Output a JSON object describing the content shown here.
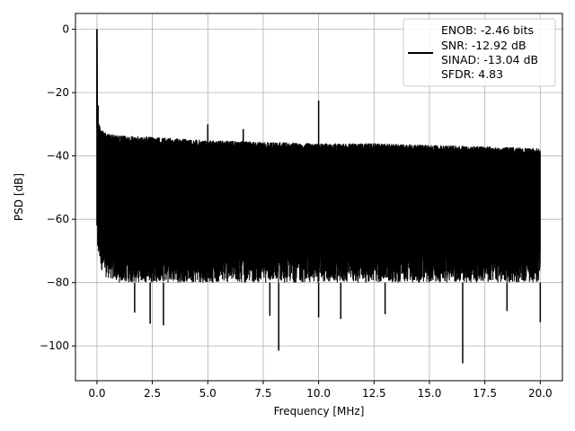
{
  "chart_data": {
    "type": "line",
    "title": "",
    "xlabel": "Frequency [MHz]",
    "ylabel": "PSD [dB]",
    "xlim": [
      -0.97,
      21.0
    ],
    "ylim": [
      -111.0,
      5.0
    ],
    "xticks": [
      0.0,
      2.5,
      5.0,
      7.5,
      10.0,
      12.5,
      15.0,
      17.5,
      20.0
    ],
    "xtick_labels": [
      "0.0",
      "2.5",
      "5.0",
      "7.5",
      "10.0",
      "12.5",
      "15.0",
      "17.5",
      "20.0"
    ],
    "yticks": [
      0,
      -20,
      -40,
      -60,
      -80,
      -100
    ],
    "ytick_labels": [
      "0",
      "−20",
      "−40",
      "−60",
      "−80",
      "−100"
    ],
    "grid": true,
    "legend": {
      "placement": "top-right",
      "entries": [
        "ENOB: -2.46 bits",
        "SNR: -12.92 dB",
        "SINAD: -13.04 dB",
        "SFDR: 4.83"
      ]
    },
    "series": [
      {
        "color": "#000000",
        "noise_envelope": {
          "x": [
            0.05,
            0.3,
            1.0,
            2.5,
            5.0,
            7.5,
            10.0,
            12.5,
            15.0,
            17.5,
            20.0
          ],
          "upper": [
            -29,
            -32.5,
            -33.5,
            -34,
            -35,
            -35.5,
            -36,
            -36,
            -36.5,
            -37,
            -37.5
          ],
          "lower": [
            -72,
            -78,
            -80,
            -80,
            -80,
            -80,
            -80,
            -80,
            -80,
            -80,
            -80
          ]
        },
        "peaks": [
          {
            "x": 0.0,
            "y": 0.0
          },
          {
            "x": 0.05,
            "y": -24.0
          },
          {
            "x": 5.0,
            "y": -30.0
          },
          {
            "x": 10.0,
            "y": -22.5
          },
          {
            "x": 6.6,
            "y": -31.5
          }
        ],
        "dips": [
          {
            "x": 1.7,
            "y": -89.5
          },
          {
            "x": 2.4,
            "y": -93.0
          },
          {
            "x": 3.0,
            "y": -93.5
          },
          {
            "x": 7.8,
            "y": -90.5
          },
          {
            "x": 8.2,
            "y": -101.5
          },
          {
            "x": 10.0,
            "y": -91.0
          },
          {
            "x": 11.0,
            "y": -91.5
          },
          {
            "x": 13.0,
            "y": -90.0
          },
          {
            "x": 16.5,
            "y": -105.5
          },
          {
            "x": 18.5,
            "y": -89.0
          },
          {
            "x": 20.0,
            "y": -92.5
          }
        ]
      }
    ]
  }
}
